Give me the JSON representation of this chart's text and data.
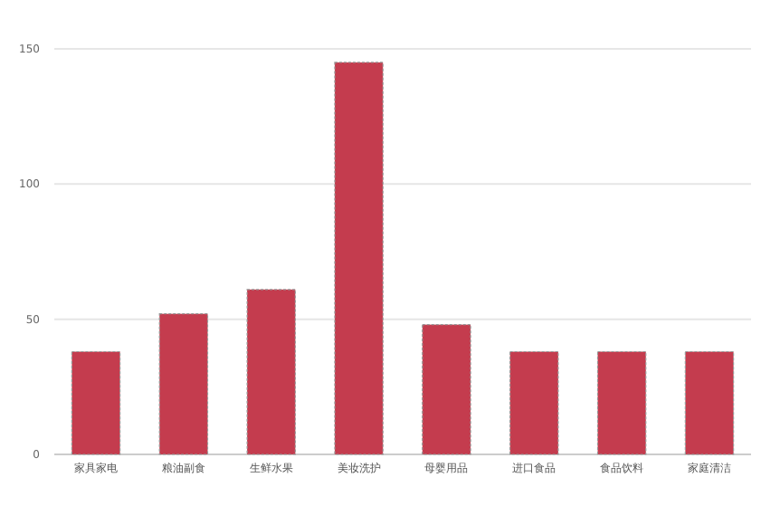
{
  "chart_data": {
    "type": "bar",
    "categories": [
      "家具家电",
      "粮油副食",
      "生鲜水果",
      "美妆洗护",
      "母婴用品",
      "进口食品",
      "食品饮料",
      "家庭清洁"
    ],
    "values": [
      38,
      52,
      61,
      145,
      48,
      38,
      38,
      38
    ],
    "color": "#c43c4e",
    "ylim": [
      0,
      150
    ],
    "yticks": [
      0,
      50,
      100,
      150
    ],
    "grid": "y"
  }
}
